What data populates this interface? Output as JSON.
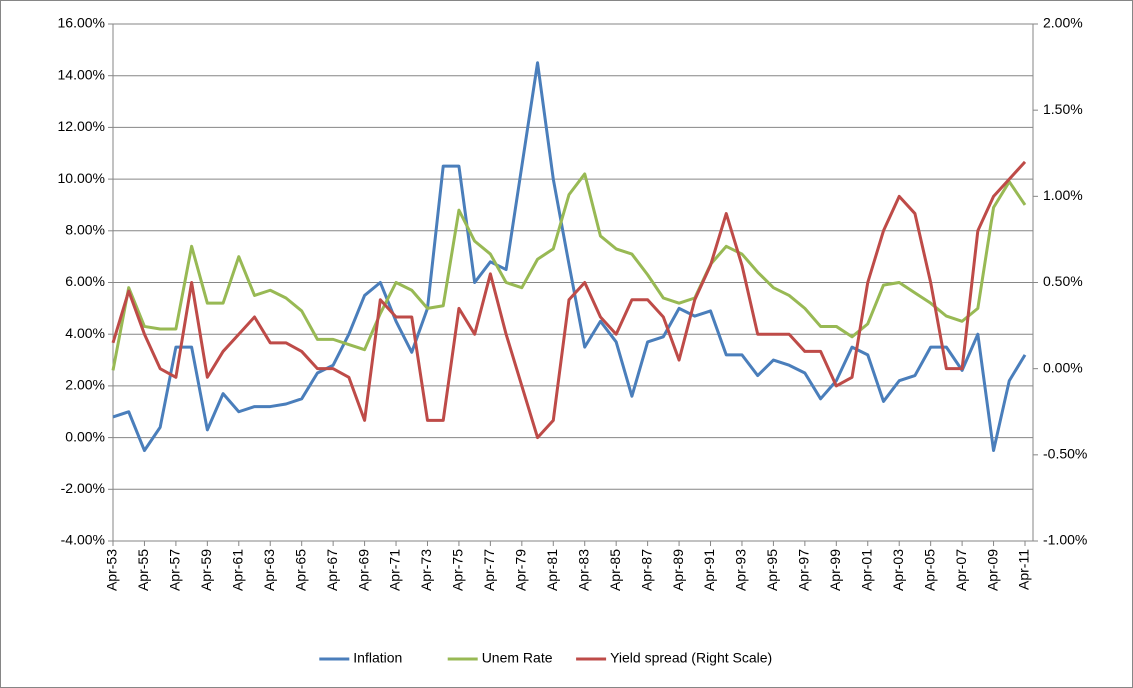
{
  "chart_data": {
    "type": "line",
    "categories": [
      "Apr-53",
      null,
      "Apr-55",
      null,
      "Apr-57",
      null,
      "Apr-59",
      null,
      "Apr-61",
      null,
      "Apr-63",
      null,
      "Apr-65",
      null,
      "Apr-67",
      null,
      "Apr-69",
      null,
      "Apr-71",
      null,
      "Apr-73",
      null,
      "Apr-75",
      null,
      "Apr-77",
      null,
      "Apr-79",
      null,
      "Apr-81",
      null,
      "Apr-83",
      null,
      "Apr-85",
      null,
      "Apr-87",
      null,
      "Apr-89",
      null,
      "Apr-91",
      null,
      "Apr-93",
      null,
      "Apr-95",
      null,
      "Apr-97",
      null,
      "Apr-99",
      null,
      "Apr-01",
      null,
      "Apr-03",
      null,
      "Apr-05",
      null,
      "Apr-07",
      null,
      "Apr-09",
      null,
      "Apr-11"
    ],
    "series": [
      {
        "name": "Inflation",
        "color": "#4a7ebb",
        "values": [
          0.8,
          1.0,
          -0.5,
          0.4,
          3.5,
          3.5,
          0.3,
          1.7,
          1.0,
          1.2,
          1.2,
          1.3,
          1.5,
          2.5,
          2.8,
          4.0,
          5.5,
          6.0,
          4.5,
          3.3,
          5.0,
          10.5,
          10.5,
          6.0,
          6.8,
          6.5,
          10.5,
          14.5,
          10.0,
          6.7,
          3.5,
          4.5,
          3.7,
          1.6,
          3.7,
          3.9,
          5.0,
          4.7,
          4.9,
          3.2,
          3.2,
          2.4,
          3.0,
          2.8,
          2.5,
          1.5,
          2.2,
          3.5,
          3.2,
          1.4,
          2.2,
          2.4,
          3.5,
          3.5,
          2.6,
          4.0,
          -0.5,
          2.2,
          3.2
        ]
      },
      {
        "name": "Unem Rate",
        "color": "#98b954",
        "values": [
          2.6,
          5.8,
          4.3,
          4.2,
          4.2,
          7.4,
          5.2,
          5.2,
          7.0,
          5.5,
          5.7,
          5.4,
          4.9,
          3.8,
          3.8,
          3.6,
          3.4,
          4.8,
          6.0,
          5.7,
          5.0,
          5.1,
          8.8,
          7.6,
          7.1,
          6.0,
          5.8,
          6.9,
          7.3,
          9.4,
          10.2,
          7.8,
          7.3,
          7.1,
          6.3,
          5.4,
          5.2,
          5.4,
          6.7,
          7.4,
          7.1,
          6.4,
          5.8,
          5.5,
          5.0,
          4.3,
          4.3,
          3.9,
          4.4,
          5.9,
          6.0,
          5.6,
          5.2,
          4.7,
          4.5,
          5.0,
          8.9,
          9.9,
          9.0
        ]
      },
      {
        "name": "Yield spread (Right Scale)",
        "color": "#be4b48",
        "axis": "y2",
        "values": [
          0.15,
          0.45,
          0.2,
          0.0,
          -0.05,
          0.5,
          -0.05,
          0.1,
          0.2,
          0.3,
          0.15,
          0.15,
          0.1,
          0.0,
          0.0,
          -0.05,
          -0.3,
          0.4,
          0.3,
          0.3,
          -0.3,
          -0.3,
          0.35,
          0.2,
          0.55,
          0.2,
          -0.1,
          -0.4,
          -0.3,
          0.4,
          0.5,
          0.3,
          0.2,
          0.4,
          0.4,
          0.3,
          0.05,
          0.4,
          0.6,
          0.9,
          0.6,
          0.2,
          0.2,
          0.2,
          0.1,
          0.1,
          -0.1,
          -0.05,
          0.5,
          0.8,
          1.0,
          0.9,
          0.5,
          0.0,
          0.0,
          0.8,
          1.0,
          1.1,
          1.2
        ]
      }
    ],
    "ylim": [
      -4,
      16
    ],
    "yticks": [
      {
        "value": -4,
        "label": "-4.00%"
      },
      {
        "value": -2,
        "label": "-2.00%"
      },
      {
        "value": 0,
        "label": "0.00%"
      },
      {
        "value": 2,
        "label": "2.00%"
      },
      {
        "value": 4,
        "label": "4.00%"
      },
      {
        "value": 6,
        "label": "6.00%"
      },
      {
        "value": 8,
        "label": "8.00%"
      },
      {
        "value": 10,
        "label": "10.00%"
      },
      {
        "value": 12,
        "label": "12.00%"
      },
      {
        "value": 14,
        "label": "14.00%"
      },
      {
        "value": 16,
        "label": "16.00%"
      }
    ],
    "y2lim": [
      -1,
      2
    ],
    "y2ticks": [
      {
        "value": -1,
        "label": "-1.00%"
      },
      {
        "value": -0.5,
        "label": "-0.50%"
      },
      {
        "value": 0,
        "label": "0.00%"
      },
      {
        "value": 0.5,
        "label": "0.50%"
      },
      {
        "value": 1,
        "label": "1.00%"
      },
      {
        "value": 1.5,
        "label": "1.50%"
      },
      {
        "value": 2,
        "label": "2.00%"
      }
    ],
    "grid": true,
    "legend": "bottom"
  }
}
